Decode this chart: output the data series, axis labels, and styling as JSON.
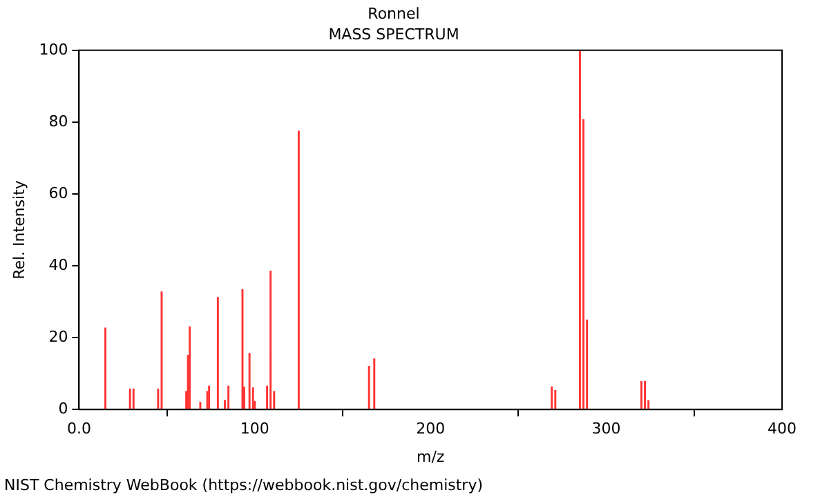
{
  "chart_data": {
    "type": "bar",
    "title": "Ronnel",
    "subtitle": "MASS SPECTRUM",
    "xlabel": "m/z",
    "ylabel": "Rel. Intensity",
    "x": [
      15,
      29,
      31,
      45,
      47,
      61,
      62,
      63,
      69,
      73,
      74,
      79,
      83,
      85,
      93,
      94,
      97,
      99,
      100,
      107,
      109,
      111,
      125,
      165,
      168,
      269,
      271,
      285,
      287,
      289,
      320,
      322,
      324
    ],
    "values": [
      22.7,
      5.7,
      5.7,
      5.7,
      32.7,
      5,
      15.1,
      23,
      2,
      5,
      6.5,
      31.2,
      2.5,
      6.5,
      33.4,
      6.2,
      15.6,
      6,
      2.2,
      6.5,
      38.5,
      5,
      77.5,
      12,
      14.1,
      6.3,
      5.3,
      100,
      80.7,
      24.9,
      7.8,
      7.8,
      2.4
    ],
    "color": "#ff3333",
    "xlim": [
      0,
      400
    ],
    "xticks": [
      {
        "value": 0,
        "label": "0.0"
      },
      100,
      200,
      300,
      400
    ],
    "ylim": [
      0,
      100
    ],
    "yticks": [
      0,
      20,
      40,
      60,
      80,
      100
    ],
    "grid": false,
    "legend": false,
    "annotations": [
      "NIST Chemistry WebBook (https://webbook.nist.gov/chemistry)"
    ]
  }
}
